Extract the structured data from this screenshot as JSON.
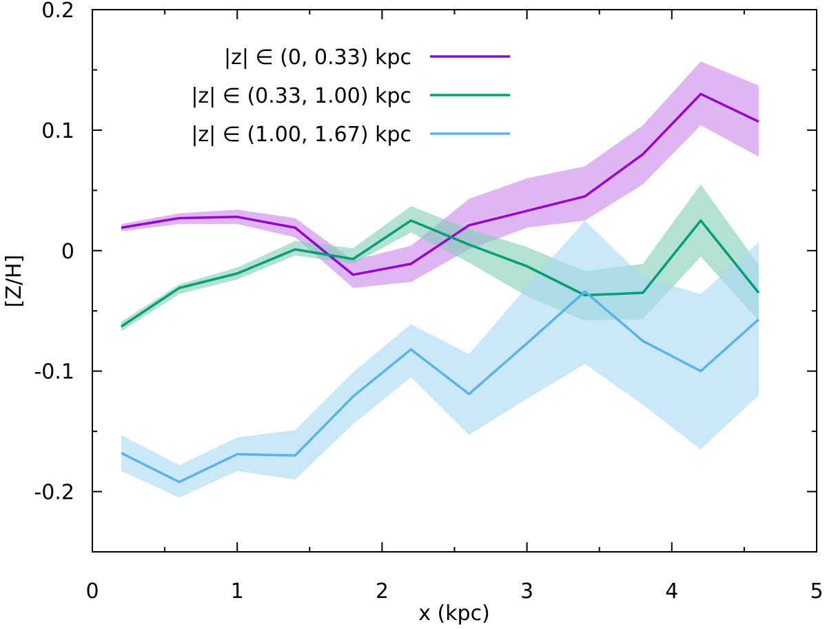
{
  "chart_data": {
    "type": "line",
    "title": "",
    "xlabel": "x (kpc)",
    "ylabel": "[Z/H]",
    "xlim": [
      0,
      5
    ],
    "ylim": [
      -0.25,
      0.2
    ],
    "xticks": [
      0,
      1,
      2,
      3,
      4,
      5
    ],
    "xtick_labels": [
      "0",
      "1",
      "2",
      "3",
      "4",
      "5"
    ],
    "yticks": [
      -0.2,
      -0.1,
      0,
      0.1,
      0.2
    ],
    "ytick_labels": [
      "-0.2",
      "-0.1",
      "0",
      "0.1",
      "0.2"
    ],
    "grid": false,
    "legend_position": "top-left",
    "x": [
      0.2,
      0.6,
      1.0,
      1.4,
      1.8,
      2.2,
      2.6,
      3.0,
      3.4,
      3.8,
      4.2,
      4.6
    ],
    "series": [
      {
        "name": "|z| ∈ (0, 0.33) kpc",
        "color": "#9400d3",
        "band_color": "#c986e8",
        "values": [
          0.019,
          0.027,
          0.028,
          0.019,
          -0.02,
          -0.011,
          0.021,
          0.033,
          0.045,
          0.08,
          0.13,
          0.107
        ],
        "lower": [
          0.016,
          0.022,
          0.022,
          0.011,
          -0.031,
          -0.026,
          0.001,
          0.019,
          0.025,
          0.055,
          0.104,
          0.078
        ],
        "upper": [
          0.022,
          0.031,
          0.034,
          0.027,
          -0.008,
          0.004,
          0.043,
          0.06,
          0.07,
          0.104,
          0.157,
          0.137
        ]
      },
      {
        "name": "|z| ∈ (0.33, 1.00) kpc",
        "color": "#009e73",
        "band_color": "#80cfb9",
        "values": [
          -0.063,
          -0.031,
          -0.019,
          0.001,
          -0.007,
          0.025,
          0.005,
          -0.013,
          -0.037,
          -0.035,
          0.025,
          -0.035
        ],
        "lower": [
          -0.067,
          -0.036,
          -0.024,
          -0.004,
          -0.011,
          0.015,
          -0.01,
          -0.038,
          -0.058,
          -0.057,
          -0.005,
          -0.058
        ],
        "upper": [
          -0.059,
          -0.028,
          -0.014,
          0.008,
          0.002,
          0.037,
          0.018,
          0.003,
          -0.017,
          -0.011,
          0.055,
          -0.012
        ]
      },
      {
        "name": "|z| ∈ (1.00, 1.67) kpc",
        "color": "#56b4e9",
        "band_color": "#a8d8f4",
        "values": [
          -0.168,
          -0.192,
          -0.169,
          -0.17,
          -0.121,
          -0.082,
          -0.119,
          -0.077,
          -0.034,
          -0.075,
          -0.1,
          -0.057
        ],
        "lower": [
          -0.183,
          -0.205,
          -0.183,
          -0.19,
          -0.144,
          -0.105,
          -0.153,
          -0.123,
          -0.094,
          -0.128,
          -0.165,
          -0.12
        ],
        "upper": [
          -0.153,
          -0.178,
          -0.155,
          -0.149,
          -0.101,
          -0.061,
          -0.086,
          -0.03,
          0.025,
          -0.022,
          -0.036,
          0.007
        ]
      }
    ]
  }
}
